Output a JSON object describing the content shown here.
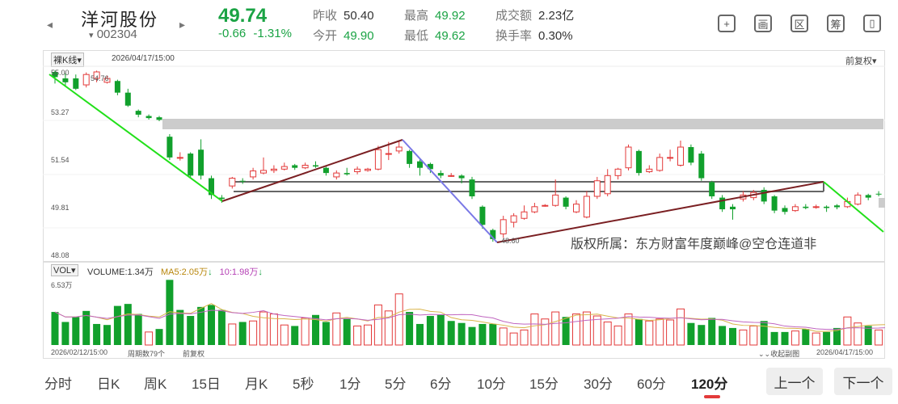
{
  "header": {
    "prev_arrow": "◂",
    "next_arrow": "▸",
    "name": "洋河股份",
    "code_prefix": "▾",
    "code": "002304",
    "price": "49.74",
    "change": "-0.66",
    "change_pct": "-1.31%",
    "quotes": [
      {
        "label": "昨收",
        "value": "50.40",
        "tone": "neutral"
      },
      {
        "label": "今开",
        "value": "49.90",
        "tone": "green"
      },
      {
        "label": "最高",
        "value": "49.92",
        "tone": "green"
      },
      {
        "label": "最低",
        "value": "49.62",
        "tone": "green"
      },
      {
        "label": "成交额",
        "value": "2.23亿",
        "tone": "neutral"
      },
      {
        "label": "换手率",
        "value": "0.30%",
        "tone": "neutral"
      }
    ],
    "tools": [
      "+",
      "画",
      "区",
      "筹",
      "▯"
    ]
  },
  "kline": {
    "mode_label": "裸K线▾",
    "datetime": "2026/04/17/15:00",
    "adjust_label": "前复权▾",
    "y_ticks": [
      "55.00",
      "53.27",
      "51.54",
      "49.81",
      "48.08"
    ],
    "high_label": "54.76",
    "low_label": "48.60",
    "watermark": "版权所属：东方财富年度巅峰@空仓连道非"
  },
  "volume": {
    "mode_label": "VOL▾",
    "vol_text": "VOLUME:1.34万",
    "ma5_text": "MA5:2.05万",
    "ma5_arrow": "↓",
    "ma10_text": "10:1.98万",
    "ma10_arrow": "↓",
    "max_label": "6.53万",
    "start_date": "2026/02/12/15:00",
    "period_count": "周期数79个",
    "adjust": "前复权",
    "collapse": "⌄⌄收起副图",
    "end_date": "2026/04/17/15:00"
  },
  "periods": [
    "分时",
    "日K",
    "周K",
    "15日",
    "月K",
    "5秒",
    "1分",
    "5分",
    "6分",
    "10分",
    "15分",
    "30分",
    "60分",
    "120分"
  ],
  "active_period": "120分",
  "nav": {
    "prev": "上一个",
    "next": "下一个"
  },
  "colors": {
    "up": "#e33a3a",
    "down": "#11a02c",
    "trend_green": "#22e01a",
    "trend_blue": "#7a78e6",
    "trend_brown": "#7a1f22"
  }
}
